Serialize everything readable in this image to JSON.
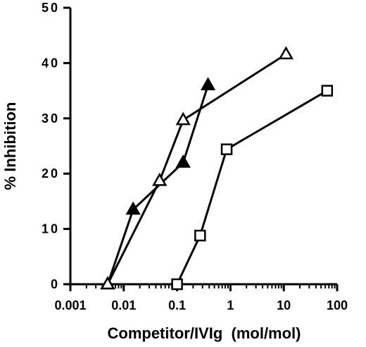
{
  "chart_data": {
    "type": "line",
    "title": "",
    "xlabel": "Competitor/IVIg  (mol/mol)",
    "ylabel": "% Inhibition",
    "xscale": "log",
    "xlim": [
      0.001,
      100
    ],
    "ylim": [
      0,
      50
    ],
    "grid": false,
    "legend": "none",
    "xticks": [
      {
        "value": 0.001,
        "label": "0.001"
      },
      {
        "value": 0.01,
        "label": "0.01"
      },
      {
        "value": 0.1,
        "label": "0.1"
      },
      {
        "value": 1,
        "label": "1"
      },
      {
        "value": 10,
        "label": "10"
      },
      {
        "value": 100,
        "label": "100"
      }
    ],
    "yticks": [
      {
        "value": 0,
        "label": "0"
      },
      {
        "value": 10,
        "label": "10"
      },
      {
        "value": 20,
        "label": "20"
      },
      {
        "value": 30,
        "label": "30"
      },
      {
        "value": 40,
        "label": "40"
      },
      {
        "value": 50,
        "label": "50"
      }
    ],
    "series": [
      {
        "marker": "filled-triangle",
        "color": "#000000",
        "x": [
          0.005,
          0.015,
          0.13,
          0.38
        ],
        "y": [
          0,
          13.5,
          22,
          36
        ]
      },
      {
        "marker": "open-triangle",
        "color": "#000000",
        "x": [
          0.005,
          0.047,
          0.13,
          11
        ],
        "y": [
          0,
          18.7,
          29.7,
          41.6
        ]
      },
      {
        "marker": "open-square",
        "color": "#000000",
        "x": [
          0.1,
          0.27,
          0.85,
          65
        ],
        "y": [
          0,
          8.8,
          24.4,
          35
        ]
      }
    ]
  }
}
